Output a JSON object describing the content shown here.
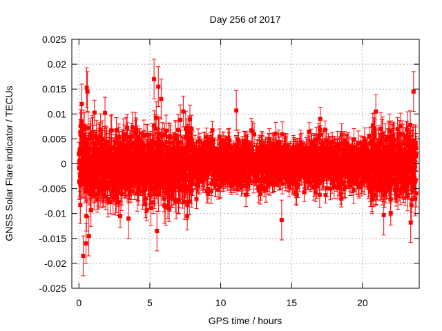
{
  "chart_data": {
    "type": "scatter",
    "title": "Day 256 of 2017",
    "xlabel": "GPS time / hours",
    "ylabel": "GNSS Solar Flare indicator / TECUs",
    "xlim": [
      -0.5,
      24.0
    ],
    "ylim": [
      -0.025,
      0.025
    ],
    "x_ticks": [
      0,
      5,
      10,
      15,
      20
    ],
    "x_tick_labels": [
      "0",
      "5",
      "10",
      "15",
      "20"
    ],
    "y_ticks": [
      -0.025,
      -0.02,
      -0.015,
      -0.01,
      -0.005,
      0,
      0.005,
      0.01,
      0.015,
      0.02,
      0.025
    ],
    "y_tick_labels": [
      "-0.025",
      "-0.02",
      "-0.015",
      "-0.01",
      "-0.005",
      "0",
      "0.005",
      "0.01",
      "0.015",
      "0.02",
      "0.025"
    ],
    "grid": true,
    "series": [
      {
        "name": "solar flare indicator",
        "color": "#ff0000",
        "marker": "square",
        "error_bars": true,
        "x_range": [
          0.0,
          23.8
        ],
        "sample_step_hours": 0.01,
        "segments": [
          {
            "x_start": 0.0,
            "x_end": 2.0,
            "sigma": 0.0062,
            "error": 0.0032
          },
          {
            "x_start": 2.0,
            "x_end": 8.0,
            "sigma": 0.0055,
            "error": 0.003
          },
          {
            "x_start": 8.0,
            "x_end": 20.5,
            "sigma": 0.0038,
            "error": 0.0022
          },
          {
            "x_start": 20.5,
            "x_end": 23.8,
            "sigma": 0.0052,
            "error": 0.003
          }
        ],
        "notable_points": [
          {
            "x": 0.3,
            "y": -0.0185
          },
          {
            "x": 0.5,
            "y": -0.016
          },
          {
            "x": 0.55,
            "y": 0.0153
          },
          {
            "x": 0.6,
            "y": 0.0145
          },
          {
            "x": 0.7,
            "y": -0.0145
          },
          {
            "x": 0.2,
            "y": 0.012
          },
          {
            "x": 5.3,
            "y": 0.017
          },
          {
            "x": 5.6,
            "y": 0.0155
          },
          {
            "x": 5.5,
            "y": -0.0135
          },
          {
            "x": 5.8,
            "y": 0.013
          },
          {
            "x": 3.5,
            "y": -0.011
          },
          {
            "x": 14.3,
            "y": -0.0113
          },
          {
            "x": 11.1,
            "y": 0.0107
          },
          {
            "x": 23.6,
            "y": 0.0145
          },
          {
            "x": 23.4,
            "y": -0.0118
          },
          {
            "x": 21.5,
            "y": -0.0103
          }
        ]
      }
    ]
  }
}
